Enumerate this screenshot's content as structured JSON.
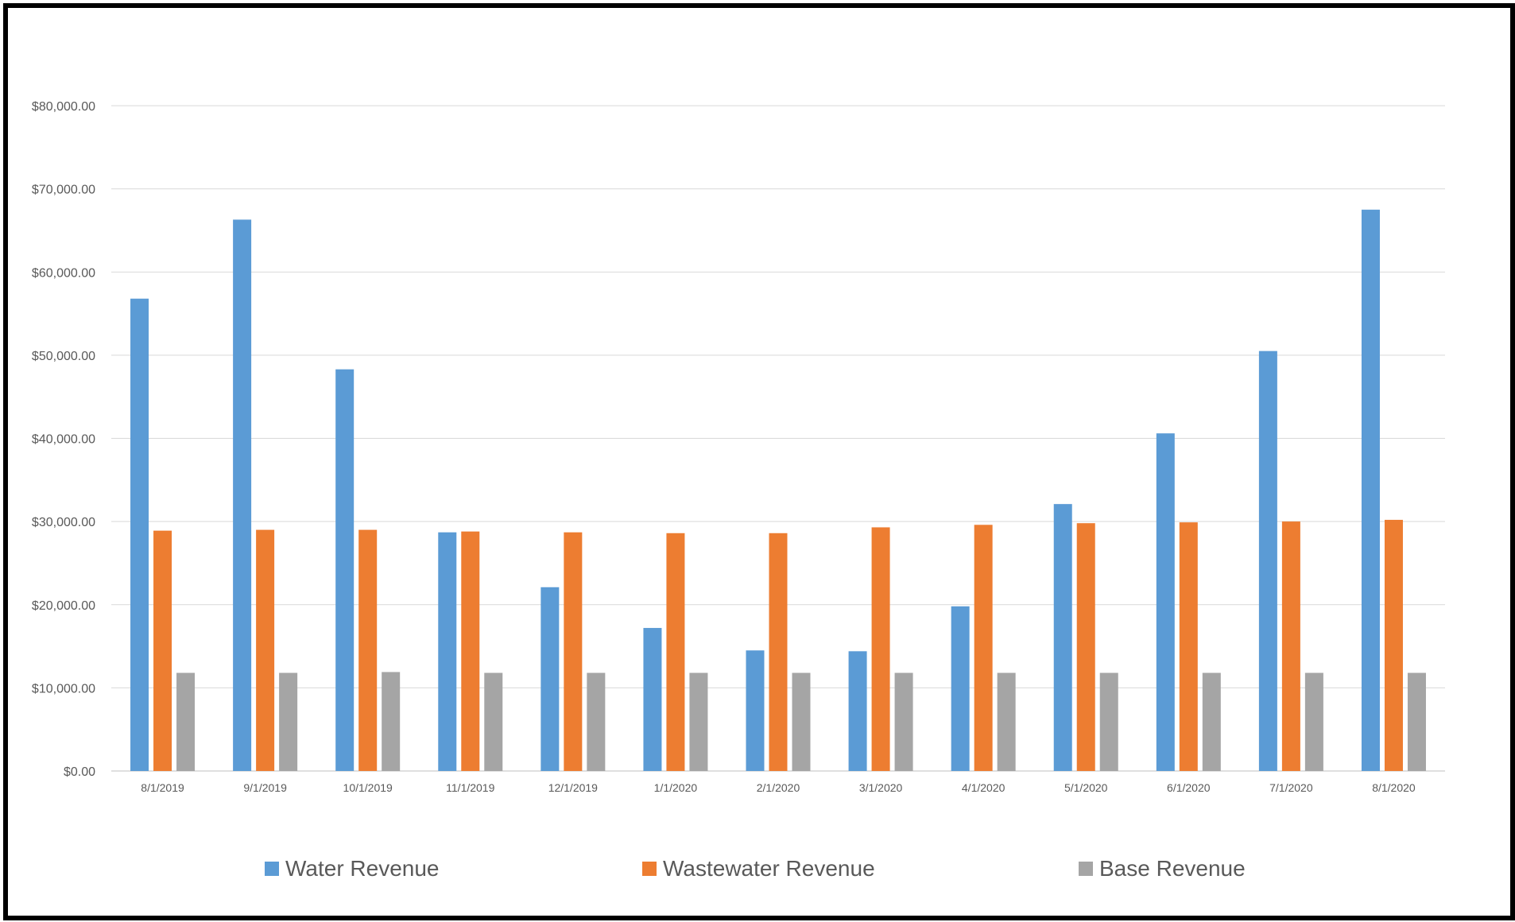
{
  "chart_data": {
    "type": "bar",
    "categories": [
      "8/1/2019",
      "9/1/2019",
      "10/1/2019",
      "11/1/2019",
      "12/1/2019",
      "1/1/2020",
      "2/1/2020",
      "3/1/2020",
      "4/1/2020",
      "5/1/2020",
      "6/1/2020",
      "7/1/2020",
      "8/1/2020"
    ],
    "series": [
      {
        "name": "Water Revenue",
        "color": "#5B9BD5",
        "values": [
          56800,
          66300,
          48300,
          28700,
          22100,
          17200,
          14500,
          14400,
          19800,
          32100,
          40600,
          50500,
          67500
        ]
      },
      {
        "name": "Wastewater Revenue",
        "color": "#ED7D31",
        "values": [
          28900,
          29000,
          29000,
          28800,
          28700,
          28600,
          28600,
          29300,
          29600,
          29800,
          29900,
          30000,
          30200
        ]
      },
      {
        "name": "Base Revenue",
        "color": "#A5A5A5",
        "values": [
          11800,
          11800,
          11900,
          11800,
          11800,
          11800,
          11800,
          11800,
          11800,
          11800,
          11800,
          11800,
          11800
        ]
      }
    ],
    "yticks": [
      "$0.00",
      "$10,000.00",
      "$20,000.00",
      "$30,000.00",
      "$40,000.00",
      "$50,000.00",
      "$60,000.00",
      "$70,000.00",
      "$80,000.00"
    ],
    "ylim": [
      0,
      80000
    ],
    "grid": true,
    "legend_position": "bottom",
    "title": "",
    "xlabel": "",
    "ylabel": ""
  }
}
